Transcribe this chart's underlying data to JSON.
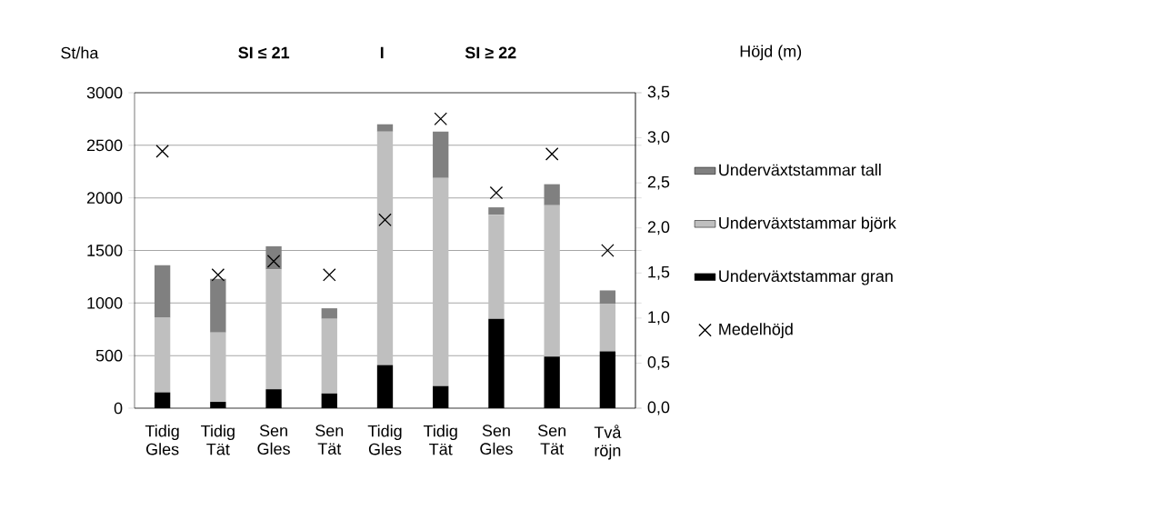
{
  "chart_data": {
    "type": "bar",
    "stacked": true,
    "ylabel": "St/ha",
    "y2label": "Höjd (m)",
    "annotations": [
      "SI ≤ 21",
      "I",
      "SI ≥ 22"
    ],
    "categories": [
      "Tidig Gles",
      "Tidig Tät",
      "Sen Gles",
      "Sen Tät",
      "Tidig Gles",
      "Tidig Tät",
      "Sen Gles",
      "Sen Tät",
      "Två röjn"
    ],
    "series": [
      {
        "name": "Underväxtstammar gran",
        "color": "#000000",
        "values": [
          150,
          60,
          180,
          140,
          410,
          210,
          850,
          490,
          540
        ]
      },
      {
        "name": "Underväxtstammar björk",
        "color": "#bfbfbf",
        "values": [
          710,
          660,
          1140,
          710,
          2220,
          1980,
          990,
          1440,
          450
        ]
      },
      {
        "name": "Underväxtstammar tall",
        "color": "#808080",
        "values": [
          500,
          510,
          220,
          100,
          70,
          440,
          70,
          200,
          130
        ]
      },
      {
        "name": "Medelhöjd",
        "type": "scatter",
        "axis": "y2",
        "marker": "cross",
        "color": "#000000",
        "values": [
          2.85,
          1.48,
          1.63,
          1.48,
          2.09,
          3.21,
          2.39,
          2.82,
          1.75
        ]
      }
    ],
    "ylim": [
      0,
      3000
    ],
    "yticks": [
      0,
      500,
      1000,
      1500,
      2000,
      2500,
      3000
    ],
    "y2lim": [
      0,
      3.5
    ],
    "y2ticks": [
      {
        "value": 0,
        "label": "0,0"
      },
      {
        "value": 0.5,
        "label": "0,5"
      },
      {
        "value": 1,
        "label": "1,0"
      },
      {
        "value": 1.5,
        "label": "1,5"
      },
      {
        "value": 2,
        "label": "2,0"
      },
      {
        "value": 2.5,
        "label": "2,5"
      },
      {
        "value": 3,
        "label": "3,0"
      },
      {
        "value": 3.5,
        "label": "3,5"
      }
    ],
    "grid": "y",
    "legend": "right"
  }
}
